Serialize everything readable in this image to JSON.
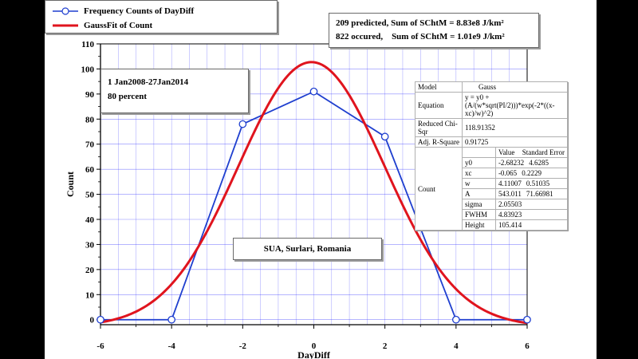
{
  "legend": {
    "series1_label": "Frequency Counts of DayDiff",
    "series2_label": "GaussFit of Count"
  },
  "energy_box": {
    "line1": "209 predicted, Sum of SChtM = 8.83e8 J/km²",
    "line2": "822 occured,    Sum of SChtM = 1.01e9 J/km²"
  },
  "info_box": {
    "line1": "1 Jan2008-27Jan2014",
    "line2": "80 percent"
  },
  "location_label": "SUA, Surlari, Romania",
  "fit_table": {
    "model_label": "Model",
    "model_value": "Gauss",
    "equation_label": "Equation",
    "equation_value": "y = y0 + (A/(w*sqrt(PI/2)))*exp(-2*((x-xc)/w)^2)",
    "chisq_label": "Reduced Chi-Sqr",
    "chisq_value": "118.91352",
    "adjr_label": "Adj. R-Square",
    "adjr_value": "0.91725",
    "col_value": "Value",
    "col_error": "Standard Error",
    "group_label": "Count",
    "params": [
      {
        "name": "y0",
        "value": "-2.68232",
        "error": "4.6285"
      },
      {
        "name": "xc",
        "value": "-0.065",
        "error": "0.2229"
      },
      {
        "name": "w",
        "value": "4.11007",
        "error": "0.51035"
      },
      {
        "name": "A",
        "value": "543.011",
        "error": "71.66981"
      },
      {
        "name": "sigma",
        "value": "2.05503",
        "error": ""
      },
      {
        "name": "FWHM",
        "value": "4.83923",
        "error": ""
      },
      {
        "name": "Height",
        "value": "105.414",
        "error": ""
      }
    ]
  },
  "colors": {
    "counts_line": "#1f3fcf",
    "fit_line": "#e0141e",
    "grid": "#2a2aff"
  },
  "chart_data": {
    "type": "line",
    "xlabel": "DayDiff",
    "ylabel": "Count",
    "xlim": [
      -6,
      6
    ],
    "ylim": [
      -2,
      110
    ],
    "xticks": [
      -6,
      -4,
      -2,
      0,
      2,
      4,
      6
    ],
    "yticks": [
      0,
      10,
      20,
      30,
      40,
      50,
      60,
      70,
      80,
      90,
      100,
      110
    ],
    "grid": true,
    "legend_position": "top-left",
    "series": [
      {
        "name": "Frequency Counts of DayDiff",
        "style": "line-with-open-circles",
        "x": [
          -6,
          -4,
          -2,
          0,
          2,
          4,
          6
        ],
        "y": [
          0,
          0,
          78,
          91,
          73,
          0,
          0
        ]
      },
      {
        "name": "GaussFit of Count",
        "style": "smooth-line",
        "model": "gauss",
        "params": {
          "y0": -2.68232,
          "xc": -0.065,
          "w": 4.11007,
          "A": 543.011
        }
      }
    ]
  }
}
